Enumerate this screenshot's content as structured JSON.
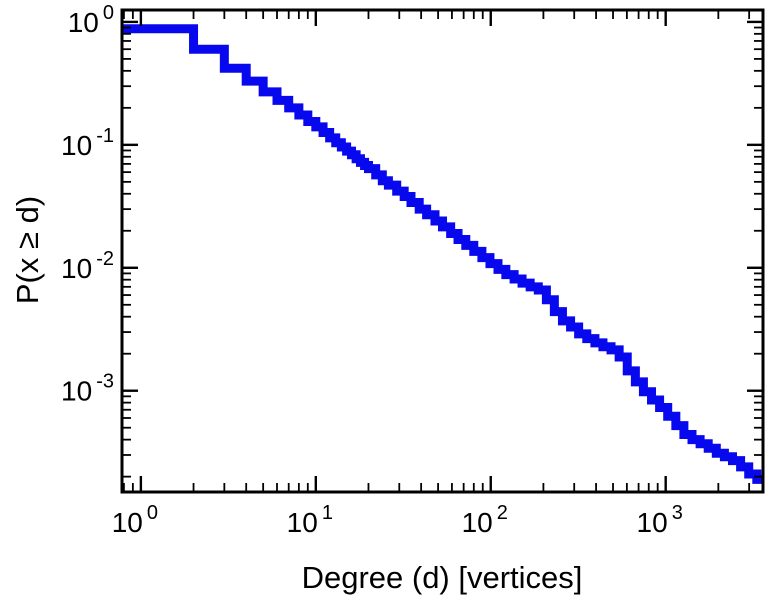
{
  "chart_data": {
    "type": "line",
    "subtype": "step-ccdf",
    "title": "",
    "xlabel": "Degree (d) [vertices]",
    "ylabel": "P(x ≥ d)",
    "x_scale": "log",
    "y_scale": "log",
    "xlim": [
      0.78,
      3600
    ],
    "ylim": [
      0.00015,
      1.25
    ],
    "x_major_ticks": [
      1,
      10,
      100,
      1000
    ],
    "y_major_ticks": [
      1,
      0.1,
      0.01,
      0.001
    ],
    "grid": false,
    "legend": "none",
    "line_color": "#0808ee",
    "line_width": 9,
    "frame_color": "#000000",
    "series": [
      {
        "name": "degree-ccdf",
        "points": [
          [
            1,
            0.88
          ],
          [
            2,
            0.6
          ],
          [
            3,
            0.42
          ],
          [
            4,
            0.33
          ],
          [
            5,
            0.27
          ],
          [
            6,
            0.23
          ],
          [
            7,
            0.2
          ],
          [
            8,
            0.175
          ],
          [
            9,
            0.155
          ],
          [
            10,
            0.14
          ],
          [
            11,
            0.126
          ],
          [
            12,
            0.114
          ],
          [
            13,
            0.104
          ],
          [
            14,
            0.096
          ],
          [
            15,
            0.089
          ],
          [
            16,
            0.083
          ],
          [
            17,
            0.077
          ],
          [
            18,
            0.072
          ],
          [
            19,
            0.068
          ],
          [
            20,
            0.064
          ],
          [
            22,
            0.057
          ],
          [
            24,
            0.051
          ],
          [
            26,
            0.047
          ],
          [
            29,
            0.042
          ],
          [
            32,
            0.038
          ],
          [
            35,
            0.034
          ],
          [
            39,
            0.03
          ],
          [
            43,
            0.027
          ],
          [
            48,
            0.024
          ],
          [
            53,
            0.0215
          ],
          [
            59,
            0.019
          ],
          [
            65,
            0.017
          ],
          [
            72,
            0.0152
          ],
          [
            80,
            0.0136
          ],
          [
            89,
            0.0121
          ],
          [
            99,
            0.0108
          ],
          [
            110,
            0.0097
          ],
          [
            122,
            0.0088
          ],
          [
            136,
            0.0081
          ],
          [
            151,
            0.0075
          ],
          [
            168,
            0.007
          ],
          [
            187,
            0.0066
          ],
          [
            208,
            0.0055
          ],
          [
            231,
            0.0044
          ],
          [
            257,
            0.0037
          ],
          [
            286,
            0.0033
          ],
          [
            318,
            0.0029
          ],
          [
            354,
            0.00265
          ],
          [
            394,
            0.00245
          ],
          [
            438,
            0.00228
          ],
          [
            487,
            0.00215
          ],
          [
            542,
            0.00188
          ],
          [
            603,
            0.00145
          ],
          [
            671,
            0.00118
          ],
          [
            746,
            0.00098
          ],
          [
            830,
            0.00084
          ],
          [
            923,
            0.00073
          ],
          [
            1027,
            0.00062
          ],
          [
            1143,
            0.00052
          ],
          [
            1271,
            0.00044
          ],
          [
            1414,
            0.0004
          ],
          [
            1573,
            0.00037
          ],
          [
            1750,
            0.00034
          ],
          [
            1947,
            0.00031
          ],
          [
            2166,
            0.00029
          ],
          [
            2410,
            0.00027
          ],
          [
            2681,
            0.00024
          ],
          [
            2983,
            0.00021
          ],
          [
            3318,
            0.00019
          ]
        ]
      }
    ]
  }
}
